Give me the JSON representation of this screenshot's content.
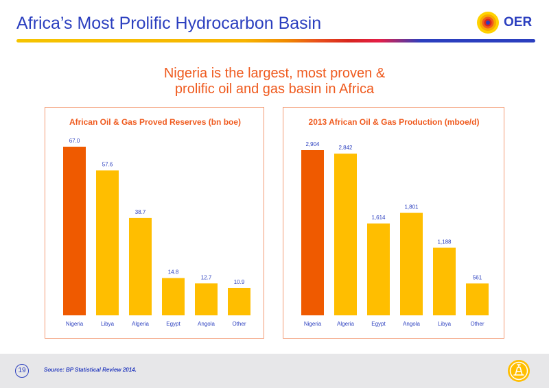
{
  "header": {
    "title": "Africa’s Most Prolific Hydrocarbon Basin",
    "logo_text": "OER"
  },
  "headline": {
    "line1": "Nigeria is the largest, most proven &",
    "line2": "prolific oil and gas basin in Africa"
  },
  "colors": {
    "highlight": "#ef5a00",
    "bar": "#ffbe00",
    "label": "#2b3fbf",
    "accent": "#ef5a1e",
    "brand": "#2b3fbf"
  },
  "chart_data": [
    {
      "type": "bar",
      "title": "African Oil & Gas Proved Reserves (bn boe)",
      "categories": [
        "Nigeria",
        "Libya",
        "Algeria",
        "Egypt",
        "Angola",
        "Other"
      ],
      "values": [
        67.0,
        57.6,
        38.7,
        14.8,
        12.7,
        10.9
      ],
      "value_labels": [
        "67.0",
        "57.6",
        "38.7",
        "14.8",
        "12.7",
        "10.9"
      ],
      "highlight_index": 0,
      "ylim": [
        0,
        67.0
      ],
      "grid": false
    },
    {
      "type": "bar",
      "title": "2013 African Oil & Gas Production (mboe/d)",
      "categories": [
        "Nigeria",
        "Algeria",
        "Egypt",
        "Angola",
        "Libya",
        "Other"
      ],
      "values": [
        2904,
        2842,
        1614,
        1801,
        1188,
        561
      ],
      "value_labels": [
        "2,904",
        "2,842",
        "1,614",
        "1,801",
        "1,188",
        "561"
      ],
      "highlight_index": 0,
      "ylim": [
        0,
        2904
      ],
      "grid": false
    }
  ],
  "footer": {
    "page_number": "19",
    "source": "Source: BP Statistical Review 2014."
  }
}
